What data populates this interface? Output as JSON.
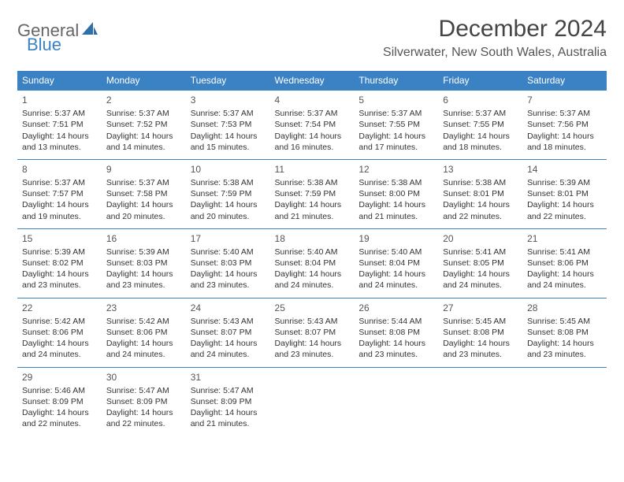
{
  "logo": {
    "part1": "General",
    "part2": "Blue"
  },
  "title": "December 2024",
  "location": "Silverwater, New South Wales, Australia",
  "colors": {
    "header_bg": "#3b82c4",
    "header_fg": "#ffffff",
    "rule": "#3b82c4",
    "text": "#333333",
    "title": "#444444"
  },
  "day_names": [
    "Sunday",
    "Monday",
    "Tuesday",
    "Wednesday",
    "Thursday",
    "Friday",
    "Saturday"
  ],
  "weeks": [
    [
      {
        "day": 1,
        "sunrise": "5:37 AM",
        "sunset": "7:51 PM",
        "daylight": "14 hours and 13 minutes."
      },
      {
        "day": 2,
        "sunrise": "5:37 AM",
        "sunset": "7:52 PM",
        "daylight": "14 hours and 14 minutes."
      },
      {
        "day": 3,
        "sunrise": "5:37 AM",
        "sunset": "7:53 PM",
        "daylight": "14 hours and 15 minutes."
      },
      {
        "day": 4,
        "sunrise": "5:37 AM",
        "sunset": "7:54 PM",
        "daylight": "14 hours and 16 minutes."
      },
      {
        "day": 5,
        "sunrise": "5:37 AM",
        "sunset": "7:55 PM",
        "daylight": "14 hours and 17 minutes."
      },
      {
        "day": 6,
        "sunrise": "5:37 AM",
        "sunset": "7:55 PM",
        "daylight": "14 hours and 18 minutes."
      },
      {
        "day": 7,
        "sunrise": "5:37 AM",
        "sunset": "7:56 PM",
        "daylight": "14 hours and 18 minutes."
      }
    ],
    [
      {
        "day": 8,
        "sunrise": "5:37 AM",
        "sunset": "7:57 PM",
        "daylight": "14 hours and 19 minutes."
      },
      {
        "day": 9,
        "sunrise": "5:37 AM",
        "sunset": "7:58 PM",
        "daylight": "14 hours and 20 minutes."
      },
      {
        "day": 10,
        "sunrise": "5:38 AM",
        "sunset": "7:59 PM",
        "daylight": "14 hours and 20 minutes."
      },
      {
        "day": 11,
        "sunrise": "5:38 AM",
        "sunset": "7:59 PM",
        "daylight": "14 hours and 21 minutes."
      },
      {
        "day": 12,
        "sunrise": "5:38 AM",
        "sunset": "8:00 PM",
        "daylight": "14 hours and 21 minutes."
      },
      {
        "day": 13,
        "sunrise": "5:38 AM",
        "sunset": "8:01 PM",
        "daylight": "14 hours and 22 minutes."
      },
      {
        "day": 14,
        "sunrise": "5:39 AM",
        "sunset": "8:01 PM",
        "daylight": "14 hours and 22 minutes."
      }
    ],
    [
      {
        "day": 15,
        "sunrise": "5:39 AM",
        "sunset": "8:02 PM",
        "daylight": "14 hours and 23 minutes."
      },
      {
        "day": 16,
        "sunrise": "5:39 AM",
        "sunset": "8:03 PM",
        "daylight": "14 hours and 23 minutes."
      },
      {
        "day": 17,
        "sunrise": "5:40 AM",
        "sunset": "8:03 PM",
        "daylight": "14 hours and 23 minutes."
      },
      {
        "day": 18,
        "sunrise": "5:40 AM",
        "sunset": "8:04 PM",
        "daylight": "14 hours and 24 minutes."
      },
      {
        "day": 19,
        "sunrise": "5:40 AM",
        "sunset": "8:04 PM",
        "daylight": "14 hours and 24 minutes."
      },
      {
        "day": 20,
        "sunrise": "5:41 AM",
        "sunset": "8:05 PM",
        "daylight": "14 hours and 24 minutes."
      },
      {
        "day": 21,
        "sunrise": "5:41 AM",
        "sunset": "8:06 PM",
        "daylight": "14 hours and 24 minutes."
      }
    ],
    [
      {
        "day": 22,
        "sunrise": "5:42 AM",
        "sunset": "8:06 PM",
        "daylight": "14 hours and 24 minutes."
      },
      {
        "day": 23,
        "sunrise": "5:42 AM",
        "sunset": "8:06 PM",
        "daylight": "14 hours and 24 minutes."
      },
      {
        "day": 24,
        "sunrise": "5:43 AM",
        "sunset": "8:07 PM",
        "daylight": "14 hours and 24 minutes."
      },
      {
        "day": 25,
        "sunrise": "5:43 AM",
        "sunset": "8:07 PM",
        "daylight": "14 hours and 23 minutes."
      },
      {
        "day": 26,
        "sunrise": "5:44 AM",
        "sunset": "8:08 PM",
        "daylight": "14 hours and 23 minutes."
      },
      {
        "day": 27,
        "sunrise": "5:45 AM",
        "sunset": "8:08 PM",
        "daylight": "14 hours and 23 minutes."
      },
      {
        "day": 28,
        "sunrise": "5:45 AM",
        "sunset": "8:08 PM",
        "daylight": "14 hours and 23 minutes."
      }
    ],
    [
      {
        "day": 29,
        "sunrise": "5:46 AM",
        "sunset": "8:09 PM",
        "daylight": "14 hours and 22 minutes."
      },
      {
        "day": 30,
        "sunrise": "5:47 AM",
        "sunset": "8:09 PM",
        "daylight": "14 hours and 22 minutes."
      },
      {
        "day": 31,
        "sunrise": "5:47 AM",
        "sunset": "8:09 PM",
        "daylight": "14 hours and 21 minutes."
      },
      null,
      null,
      null,
      null
    ]
  ],
  "labels": {
    "sunrise": "Sunrise: ",
    "sunset": "Sunset: ",
    "daylight": "Daylight: "
  }
}
